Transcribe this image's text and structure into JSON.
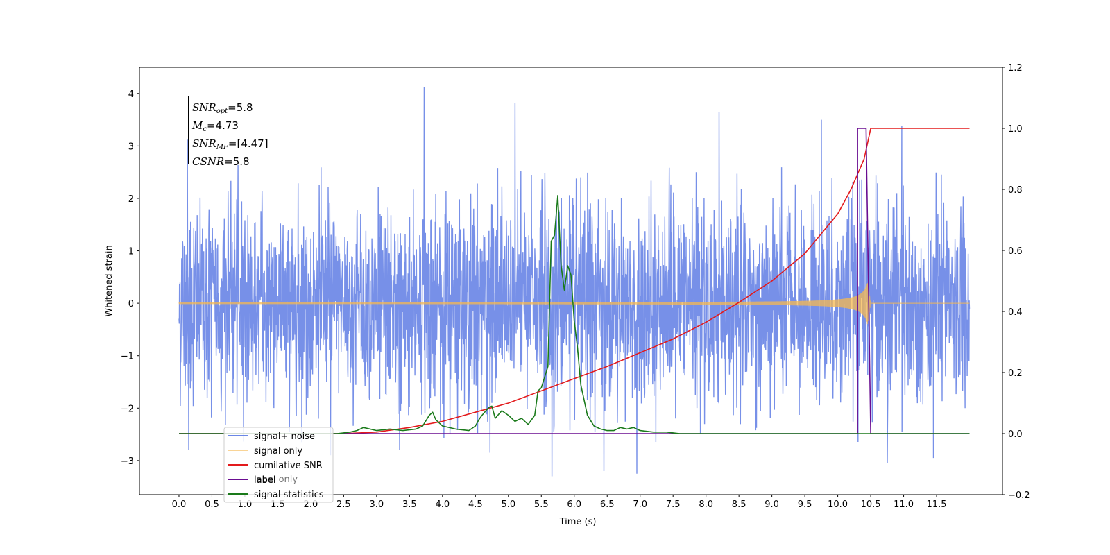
{
  "chart_data": {
    "type": "line",
    "xlabel": "Time (s)",
    "ylabel": "Whitened strain",
    "xlim": [
      -0.6,
      12.5
    ],
    "ylim_left": [
      -3.65,
      4.5
    ],
    "ylim_right": [
      -0.2,
      1.2
    ],
    "x_ticks": [
      "0.0",
      "0.5",
      "1.0",
      "1.5",
      "2.0",
      "2.5",
      "3.0",
      "3.5",
      "4.0",
      "4.5",
      "5.0",
      "5.5",
      "6.0",
      "6.5",
      "7.0",
      "7.5",
      "8.0",
      "8.5",
      "9.0",
      "9.5",
      "10.0",
      "10.5",
      "11.0",
      "11.5"
    ],
    "y_ticks_left": [
      "4",
      "3",
      "2",
      "1",
      "0",
      "−1",
      "−2",
      "−3"
    ],
    "y_ticks_right": [
      "1.2",
      "1.0",
      "0.8",
      "0.6",
      "0.4",
      "0.2",
      "0.0",
      "−0.2"
    ],
    "annotation": {
      "snr_opt": "5.8",
      "mc": "4.73",
      "snr_mf": "[4.47]",
      "csnr": "5.8"
    },
    "legend": {
      "placement": "lower-left",
      "entries": [
        "signal+ noise",
        "signal only",
        "cumilative SNR",
        "label",
        "signal statistics"
      ],
      "obscured_text": "label only"
    },
    "series": [
      {
        "name": "signal+ noise",
        "color": "#6b87e6",
        "axis": "left",
        "kind": "noise",
        "envelope": {
          "typical_min": -2.3,
          "typical_max": 2.3
        },
        "x_range": [
          0.0,
          12.0
        ],
        "spikes": [
          [
            0.13,
            3.12
          ],
          [
            0.15,
            -2.8
          ],
          [
            3.72,
            4.12
          ],
          [
            5.1,
            3.82
          ],
          [
            5.66,
            -3.3
          ],
          [
            6.45,
            -3.2
          ],
          [
            6.95,
            -3.25
          ],
          [
            8.2,
            3.65
          ],
          [
            9.75,
            3.5
          ],
          [
            10.97,
            3.38
          ],
          [
            10.75,
            -3.05
          ],
          [
            11.45,
            -2.95
          ],
          [
            2.3,
            -2.9
          ],
          [
            3.35,
            -2.8
          ],
          [
            4.72,
            -2.85
          ]
        ]
      },
      {
        "name": "signal only",
        "color": "#f5b850",
        "axis": "left",
        "kind": "chirp",
        "x_range": [
          0.0,
          12.0
        ],
        "chirp": {
          "start_amp": 0.01,
          "peak_t": 10.45,
          "peak_amp": 0.42,
          "end_t": 10.5
        }
      },
      {
        "name": "cumilative SNR",
        "color": "#e31a1c",
        "axis": "right",
        "x": [
          0,
          2.0,
          2.5,
          3.0,
          3.5,
          4.0,
          4.5,
          5.0,
          5.5,
          6.0,
          6.5,
          7.0,
          7.5,
          8.0,
          8.5,
          9.0,
          9.5,
          10.0,
          10.2,
          10.4,
          10.5,
          12.0
        ],
        "y": [
          0,
          0,
          0.0,
          0.005,
          0.02,
          0.04,
          0.07,
          0.1,
          0.14,
          0.18,
          0.22,
          0.265,
          0.31,
          0.365,
          0.43,
          0.5,
          0.59,
          0.72,
          0.8,
          0.9,
          1.0,
          1.0
        ]
      },
      {
        "name": "label",
        "color": "#6a0d91",
        "axis": "right",
        "x": [
          0,
          10.25,
          10.25,
          10.3,
          10.3,
          10.43,
          10.43,
          10.5,
          10.5,
          12.0
        ],
        "y": [
          0,
          0,
          0.0,
          0.0,
          1.0,
          1.0,
          1.0,
          0.0,
          0.0,
          0.0
        ]
      },
      {
        "name": "signal statistics",
        "color": "#1a7a1a",
        "axis": "right",
        "x": [
          0,
          2.4,
          2.6,
          2.7,
          2.8,
          3.0,
          3.2,
          3.4,
          3.6,
          3.7,
          3.8,
          3.85,
          3.9,
          4.0,
          4.2,
          4.4,
          4.5,
          4.55,
          4.6,
          4.7,
          4.75,
          4.8,
          4.9,
          5.0,
          5.1,
          5.2,
          5.3,
          5.4,
          5.45,
          5.5,
          5.6,
          5.65,
          5.7,
          5.75,
          5.8,
          5.85,
          5.9,
          5.95,
          6.0,
          6.05,
          6.1,
          6.2,
          6.3,
          6.4,
          6.5,
          6.6,
          6.7,
          6.8,
          6.9,
          7.0,
          7.2,
          7.4,
          7.6,
          7.8,
          8.0,
          12.0
        ],
        "y": [
          0,
          0,
          0.005,
          0.01,
          0.02,
          0.01,
          0.015,
          0.01,
          0.015,
          0.025,
          0.06,
          0.07,
          0.045,
          0.025,
          0.015,
          0.01,
          0.025,
          0.045,
          0.06,
          0.085,
          0.09,
          0.05,
          0.075,
          0.06,
          0.04,
          0.05,
          0.03,
          0.06,
          0.14,
          0.15,
          0.22,
          0.63,
          0.65,
          0.78,
          0.55,
          0.47,
          0.55,
          0.52,
          0.37,
          0.28,
          0.16,
          0.06,
          0.025,
          0.015,
          0.01,
          0.01,
          0.02,
          0.015,
          0.02,
          0.01,
          0.005,
          0.005,
          0.0,
          0.0,
          0.0,
          0.0
        ]
      }
    ]
  }
}
